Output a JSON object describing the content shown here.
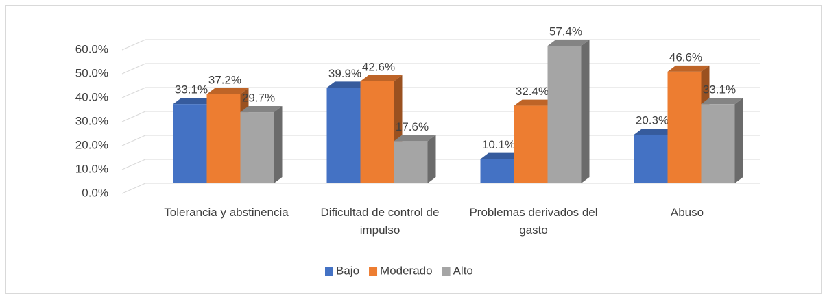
{
  "chart_data": {
    "type": "bar3d",
    "categories": [
      "Tolerancia y abstinencia",
      "Dificultad de control de impulso",
      "Problemas derivados del gasto",
      "Abuso"
    ],
    "series": [
      {
        "name": "Bajo",
        "color": "#4472c4",
        "values": [
          33.1,
          39.9,
          10.1,
          20.3
        ],
        "value_labels": [
          "33.1%",
          "39.9%",
          "10.1%",
          "20.3%"
        ]
      },
      {
        "name": "Moderado",
        "color": "#ed7d31",
        "values": [
          37.2,
          42.6,
          32.4,
          46.6
        ],
        "value_labels": [
          "37.2%",
          "42.6%",
          "32.4%",
          "46.6%"
        ]
      },
      {
        "name": "Alto",
        "color": "#a5a5a5",
        "values": [
          29.7,
          17.6,
          57.4,
          33.1
        ],
        "value_labels": [
          "29.7%",
          "17.6%",
          "57.4%",
          "33.1%"
        ]
      }
    ],
    "ylim": [
      0,
      60
    ],
    "yticks": [
      {
        "value": 0,
        "label": "0.0%"
      },
      {
        "value": 10,
        "label": "10.0%"
      },
      {
        "value": 20,
        "label": "20.0%"
      },
      {
        "value": 30,
        "label": "30.0%"
      },
      {
        "value": 40,
        "label": "40.0%"
      },
      {
        "value": 50,
        "label": "50.0%"
      },
      {
        "value": 60,
        "label": "60.0%"
      }
    ],
    "grid": true,
    "legend": "bottom"
  }
}
